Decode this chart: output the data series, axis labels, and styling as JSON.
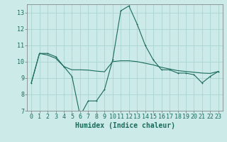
{
  "title": "",
  "xlabel": "Humidex (Indice chaleur)",
  "ylabel": "",
  "background_color": "#cceae8",
  "grid_color": "#aad4d0",
  "line_color": "#1a6b5a",
  "x_values": [
    0,
    1,
    2,
    3,
    4,
    5,
    6,
    7,
    8,
    9,
    10,
    11,
    12,
    13,
    14,
    15,
    16,
    17,
    18,
    19,
    20,
    21,
    22,
    23
  ],
  "line1_y": [
    8.7,
    10.5,
    10.5,
    10.3,
    9.7,
    9.1,
    6.7,
    7.6,
    7.6,
    8.3,
    10.1,
    13.1,
    13.4,
    12.3,
    11.0,
    10.1,
    9.5,
    9.5,
    9.3,
    9.3,
    9.2,
    8.7,
    9.1,
    9.4
  ],
  "line2_y": [
    8.7,
    10.5,
    10.4,
    10.2,
    9.7,
    9.5,
    9.5,
    9.48,
    9.42,
    9.38,
    10.0,
    10.05,
    10.05,
    10.0,
    9.9,
    9.8,
    9.65,
    9.55,
    9.45,
    9.4,
    9.35,
    9.3,
    9.28,
    9.4
  ],
  "ylim": [
    7,
    13.5
  ],
  "xlim": [
    -0.5,
    23.5
  ],
  "yticks": [
    7,
    8,
    9,
    10,
    11,
    12,
    13
  ],
  "xticks": [
    0,
    1,
    2,
    3,
    4,
    5,
    6,
    7,
    8,
    9,
    10,
    11,
    12,
    13,
    14,
    15,
    16,
    17,
    18,
    19,
    20,
    21,
    22,
    23
  ],
  "xtick_labels": [
    "0",
    "1",
    "2",
    "3",
    "4",
    "5",
    "6",
    "7",
    "8",
    "9",
    "10",
    "11",
    "12",
    "13",
    "14",
    "15",
    "16",
    "17",
    "18",
    "19",
    "20",
    "21",
    "22",
    "23"
  ],
  "fontsize_label": 7,
  "fontsize_tick": 6.0,
  "marker_size": 2.0,
  "linewidth": 0.8
}
